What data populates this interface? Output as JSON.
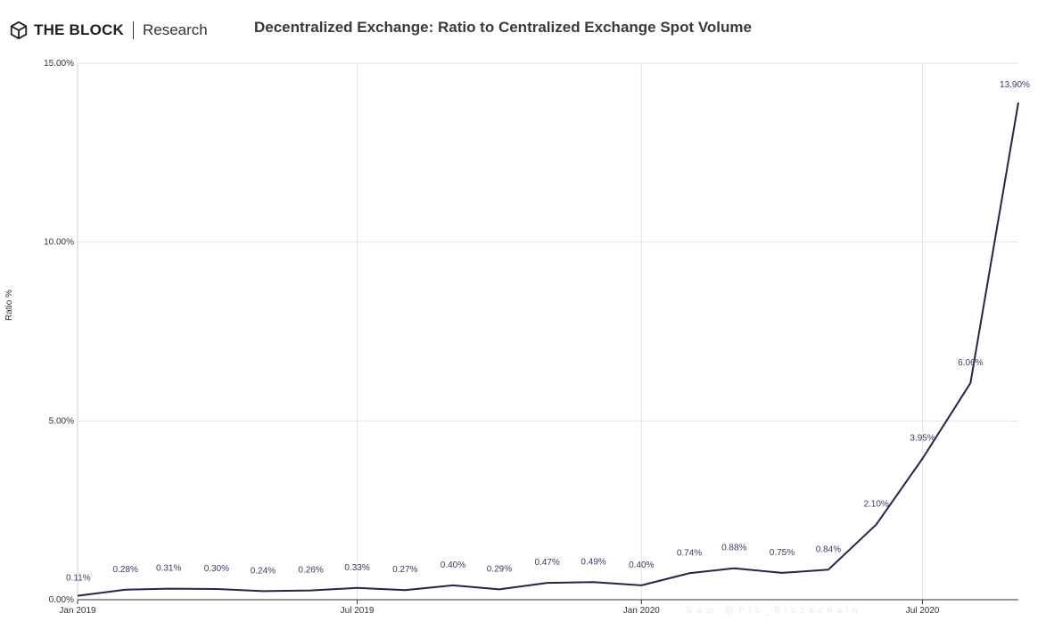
{
  "header": {
    "brand": "THE BLOCK",
    "brand_sub": "Research",
    "logo_icon": "cube-icon"
  },
  "watermark": "Баш @Plo_Blockchain",
  "chart_data": {
    "type": "line",
    "title": "Decentralized Exchange: Ratio to Centralized Exchange Spot Volume",
    "xlabel": "",
    "ylabel": "Ratio %",
    "ylim": [
      0,
      15
    ],
    "yticks": [
      "0.00%",
      "5.00%",
      "10.00%",
      "15.00%"
    ],
    "ytick_values": [
      0,
      5,
      10,
      15
    ],
    "xticks": [
      "Jan 2019",
      "Jul 2019",
      "Jan 2020",
      "Jul 2020"
    ],
    "xtick_values": [
      "2019-01",
      "2019-07",
      "2020-01",
      "2020-07"
    ],
    "grid": true,
    "line_color": "#26244a",
    "series": [
      {
        "x": [
          "2019-01",
          "2019-02",
          "2019-03",
          "2019-04",
          "2019-05",
          "2019-06",
          "2019-07",
          "2019-08",
          "2019-09",
          "2019-10",
          "2019-11",
          "2019-12",
          "2020-01",
          "2020-02",
          "2020-03",
          "2020-04",
          "2020-05",
          "2020-06",
          "2020-07",
          "2020-08",
          "2020-09"
        ],
        "values": [
          0.11,
          0.28,
          0.31,
          0.3,
          0.24,
          0.26,
          0.33,
          0.27,
          0.4,
          0.29,
          0.47,
          0.49,
          0.4,
          0.74,
          0.88,
          0.75,
          0.84,
          2.1,
          3.95,
          6.06,
          13.9
        ],
        "labels": [
          "0.11%",
          "0.28%",
          "0.31%",
          "0.30%",
          "0.24%",
          "0.26%",
          "0.33%",
          "0.27%",
          "0.40%",
          "0.29%",
          "0.47%",
          "0.49%",
          "0.40%",
          "0.74%",
          "0.88%",
          "0.75%",
          "0.84%",
          "2.10%",
          "3.95%",
          "6.06%",
          "13.90%"
        ]
      }
    ]
  }
}
